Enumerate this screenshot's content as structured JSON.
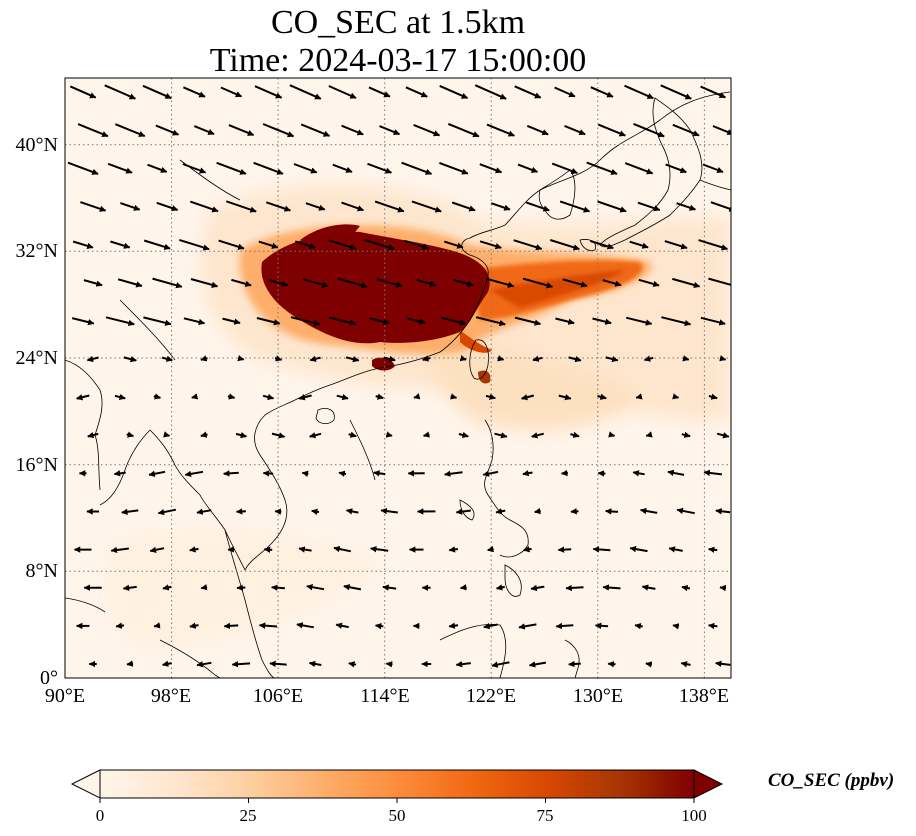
{
  "title": {
    "line1": "CO_SEC at 1.5km",
    "line2": "Time: 2024-03-17 15:00:00"
  },
  "map": {
    "lon_range": [
      90,
      140
    ],
    "lat_range": [
      0,
      45
    ],
    "grid": "dotted",
    "x_ticks": [
      "90°E",
      "98°E",
      "106°E",
      "114°E",
      "122°E",
      "130°E",
      "138°E"
    ],
    "y_ticks": [
      "0°",
      "8°N",
      "16°N",
      "24°N",
      "32°N",
      "40°N"
    ],
    "field": "CO_SEC",
    "vectors": "wind arrows"
  },
  "colorbar": {
    "label": "CO_SEC (ppbv)",
    "ticks": [
      "0",
      "25",
      "50",
      "75",
      "100"
    ],
    "colormap": [
      "#fff5eb",
      "#fee6ce",
      "#fdd0a2",
      "#fdae6b",
      "#fd8d3c",
      "#f16913",
      "#d94801",
      "#a63603",
      "#7f2704"
    ],
    "extend": "both"
  }
}
